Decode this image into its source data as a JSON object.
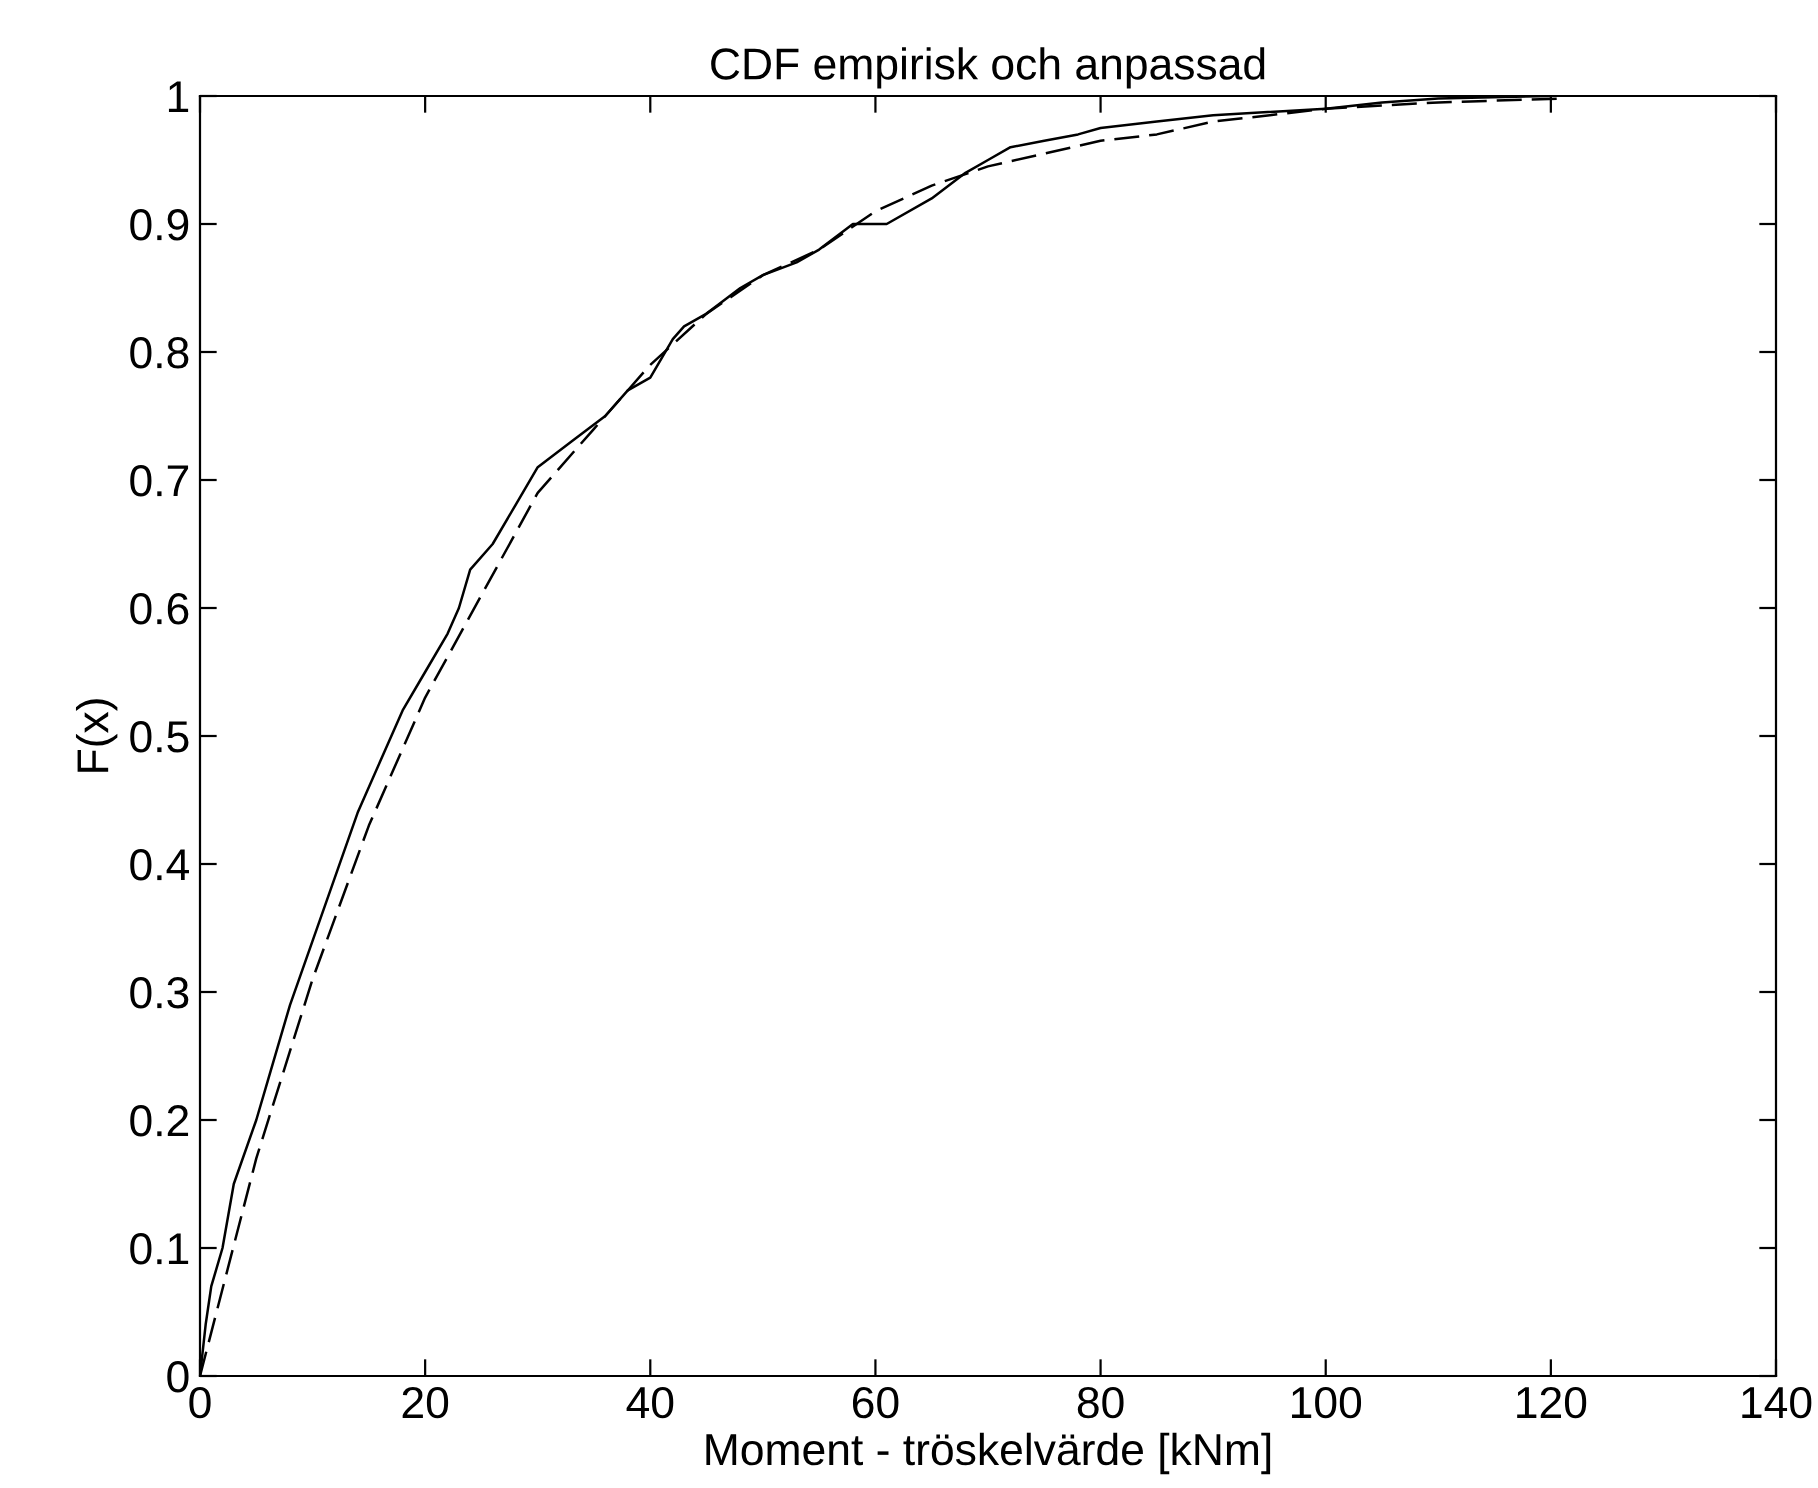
{
  "chart_data": {
    "type": "line",
    "title": "CDF empirisk och anpassad",
    "xlabel": "Moment - tröskelvärde [kNm]",
    "ylabel": "F(x)",
    "xlim": [
      0,
      140
    ],
    "xticks": [
      0,
      20,
      40,
      60,
      80,
      100,
      120,
      140
    ],
    "ylim": [
      0,
      1
    ],
    "yticks": [
      0,
      0.1,
      0.2,
      0.3,
      0.4,
      0.5,
      0.6,
      0.7,
      0.8,
      0.9,
      1
    ],
    "grid": false,
    "legend": false,
    "marker": "none",
    "series": [
      {
        "color": "#000000",
        "line_style": "solid",
        "x": [
          0,
          0.5,
          1,
          2,
          3,
          5,
          6,
          8,
          10,
          12,
          14,
          16,
          18,
          20,
          22,
          23,
          24,
          26,
          28,
          30,
          33,
          36,
          38,
          40,
          42,
          43,
          45,
          48,
          50,
          53,
          55,
          58,
          61,
          65,
          68,
          70,
          72,
          75,
          78,
          80,
          85,
          90,
          100,
          105,
          110,
          120
        ],
        "values": [
          0,
          0.04,
          0.07,
          0.1,
          0.15,
          0.2,
          0.23,
          0.29,
          0.34,
          0.39,
          0.44,
          0.48,
          0.52,
          0.55,
          0.58,
          0.6,
          0.63,
          0.65,
          0.68,
          0.71,
          0.73,
          0.75,
          0.77,
          0.78,
          0.81,
          0.82,
          0.83,
          0.85,
          0.86,
          0.87,
          0.88,
          0.9,
          0.9,
          0.92,
          0.94,
          0.95,
          0.96,
          0.965,
          0.97,
          0.975,
          0.98,
          0.985,
          0.99,
          0.995,
          0.998,
          1
        ]
      },
      {
        "color": "#000000",
        "line_style": "dashed",
        "x": [
          0,
          5,
          10,
          15,
          20,
          25,
          30,
          35,
          40,
          45,
          50,
          55,
          60,
          65,
          70,
          75,
          80,
          85,
          90,
          100,
          110,
          121
        ],
        "values": [
          0,
          0.17,
          0.31,
          0.43,
          0.53,
          0.61,
          0.69,
          0.74,
          0.79,
          0.83,
          0.86,
          0.88,
          0.91,
          0.93,
          0.945,
          0.955,
          0.965,
          0.97,
          0.98,
          0.99,
          0.995,
          0.998
        ]
      }
    ]
  }
}
